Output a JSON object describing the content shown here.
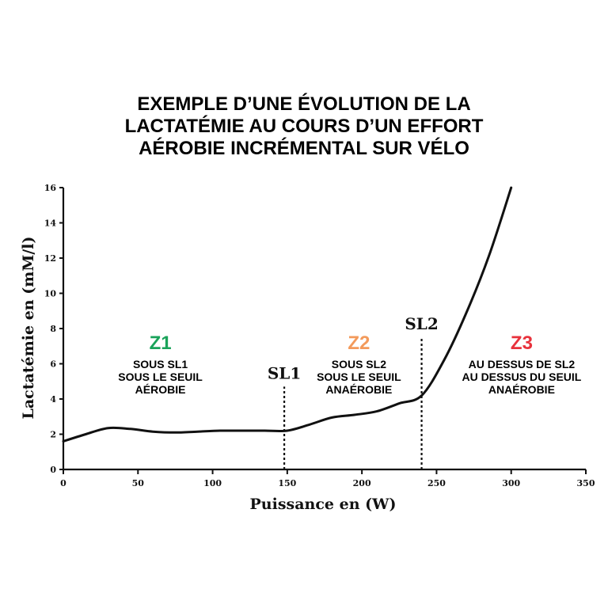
{
  "title_lines": [
    "EXEMPLE D’UNE ÉVOLUTION DE LA",
    "LACTATÉMIE AU COURS D’UN EFFORT",
    "AÉROBIE INCRÉMENTAL SUR VÉLO"
  ],
  "chart_data": {
    "type": "line",
    "title": "EXEMPLE D’UNE ÉVOLUTION DE LA LACTATÉMIE AU COURS D’UN EFFORT AÉROBIE INCRÉMENTAL SUR VÉLO",
    "xlabel": "Puissance en (W)",
    "ylabel": "Lactatémie en (mM/l)",
    "xlim": [
      0,
      350
    ],
    "ylim": [
      0,
      16
    ],
    "x_ticks": [
      0,
      50,
      100,
      150,
      200,
      250,
      300,
      350
    ],
    "x_tick_labels": [
      "0",
      "50",
      "100",
      "150",
      "200",
      "250",
      "300",
      "350"
    ],
    "y_ticks": [
      0,
      2,
      4,
      6,
      8,
      10,
      12,
      14,
      16
    ],
    "y_tick_labels": [
      "0",
      "2",
      "4",
      "6",
      "8",
      "10",
      "12",
      "14",
      "16"
    ],
    "grid": false,
    "series": [
      {
        "x": [
          0,
          15,
          30,
          45,
          60,
          75,
          90,
          105,
          120,
          135,
          150,
          165,
          180,
          195,
          210,
          225,
          240,
          255,
          270,
          285,
          300
        ],
        "y": [
          1.6,
          2.0,
          2.35,
          2.3,
          2.15,
          2.1,
          2.15,
          2.2,
          2.2,
          2.2,
          2.2,
          2.55,
          2.95,
          3.1,
          3.3,
          3.75,
          4.2,
          6.2,
          8.9,
          12.1,
          16.0
        ]
      }
    ],
    "thresholds": [
      {
        "label": "SL1",
        "x": 148,
        "y_top": 4.7
      },
      {
        "label": "SL2",
        "x": 240,
        "y_top": 7.5
      }
    ],
    "zones": [
      {
        "name": "Z1",
        "color": "#1aa35a",
        "x_center": 65,
        "lines": [
          "SOUS SL1",
          "SOUS LE SEUIL",
          "AÉROBIE"
        ]
      },
      {
        "name": "Z2",
        "color": "#f39a5b",
        "x_center": 198,
        "lines": [
          "SOUS SL2",
          "SOUS LE SEUIL",
          "ANAÉROBIE"
        ]
      },
      {
        "name": "Z3",
        "color": "#e8323c",
        "x_center": 307,
        "lines": [
          "AU DESSUS DE SL2",
          "AU DESSUS DU SEUIL",
          "ANAÉROBIE"
        ]
      }
    ]
  }
}
